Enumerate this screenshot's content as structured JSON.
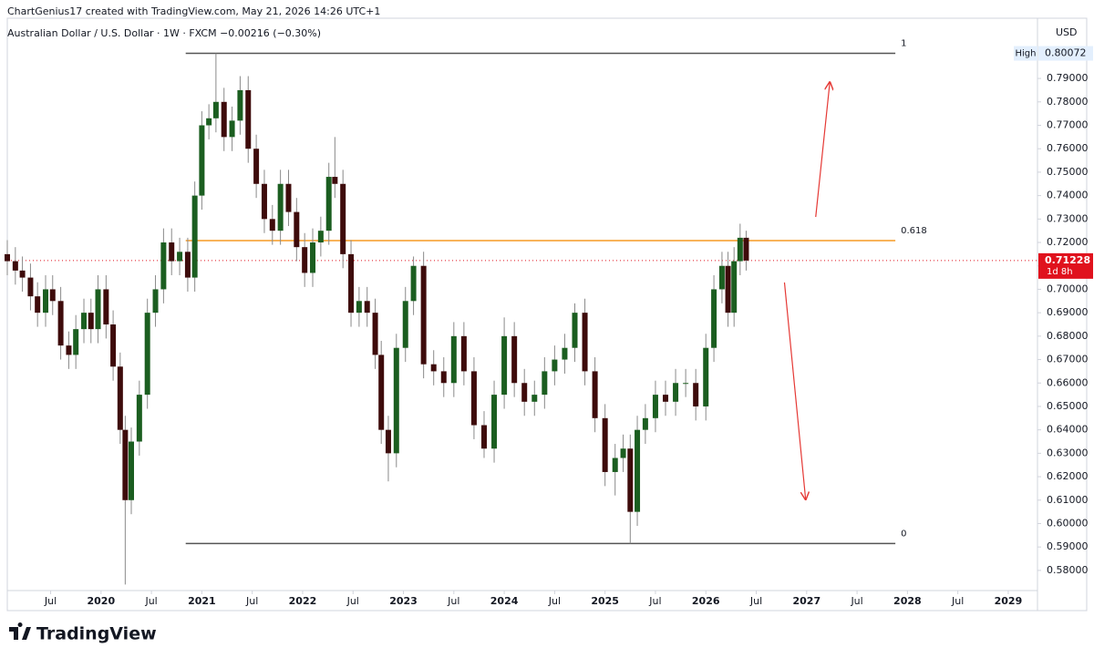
{
  "header": {
    "attribution": "ChartGenius17 created with TradingView.com, May 21, 2026 14:26 UTC+1",
    "symbol": "Australian Dollar / U.S. Dollar · 1W · FXCM",
    "change": "−0.00216 (−0.30%)"
  },
  "chart_data": {
    "type": "candlestick",
    "x": [
      2019.07,
      2019.15,
      2019.22,
      2019.3,
      2019.37,
      2019.45,
      2019.52,
      2019.6,
      2019.68,
      2019.75,
      2019.83,
      2019.9,
      2019.97,
      2020.05,
      2020.12,
      2020.19,
      2020.24,
      2020.3,
      2020.38,
      2020.46,
      2020.54,
      2020.62,
      2020.7,
      2020.78,
      2020.86,
      2020.93,
      2021.0,
      2021.07,
      2021.14,
      2021.22,
      2021.3,
      2021.38,
      2021.46,
      2021.54,
      2021.62,
      2021.7,
      2021.78,
      2021.86,
      2021.94,
      2022.02,
      2022.1,
      2022.18,
      2022.26,
      2022.32,
      2022.4,
      2022.48,
      2022.56,
      2022.64,
      2022.72,
      2022.78,
      2022.85,
      2022.93,
      2023.02,
      2023.1,
      2023.2,
      2023.3,
      2023.4,
      2023.5,
      2023.6,
      2023.7,
      2023.8,
      2023.9,
      2024.0,
      2024.1,
      2024.2,
      2024.3,
      2024.4,
      2024.5,
      2024.6,
      2024.7,
      2024.8,
      2024.9,
      2025.0,
      2025.1,
      2025.18,
      2025.25,
      2025.32,
      2025.4,
      2025.5,
      2025.6,
      2025.7,
      2025.8,
      2025.9,
      2026.0,
      2026.08,
      2026.16,
      2026.22,
      2026.28,
      2026.34,
      2026.4
    ],
    "open": [
      0.715,
      0.712,
      0.708,
      0.705,
      0.697,
      0.69,
      0.7,
      0.695,
      0.676,
      0.672,
      0.683,
      0.69,
      0.683,
      0.7,
      0.685,
      0.667,
      0.64,
      0.61,
      0.635,
      0.655,
      0.69,
      0.7,
      0.72,
      0.712,
      0.716,
      0.705,
      0.74,
      0.77,
      0.773,
      0.78,
      0.765,
      0.772,
      0.785,
      0.76,
      0.745,
      0.73,
      0.725,
      0.745,
      0.733,
      0.718,
      0.707,
      0.72,
      0.725,
      0.748,
      0.745,
      0.715,
      0.69,
      0.695,
      0.69,
      0.672,
      0.64,
      0.63,
      0.675,
      0.695,
      0.71,
      0.668,
      0.665,
      0.66,
      0.68,
      0.665,
      0.642,
      0.632,
      0.655,
      0.68,
      0.66,
      0.652,
      0.655,
      0.665,
      0.67,
      0.675,
      0.69,
      0.665,
      0.645,
      0.622,
      0.628,
      0.632,
      0.605,
      0.64,
      0.645,
      0.655,
      0.652,
      0.66,
      0.66,
      0.65,
      0.675,
      0.7,
      0.71,
      0.69,
      0.712,
      0.722
    ],
    "high": [
      0.721,
      0.718,
      0.714,
      0.711,
      0.703,
      0.706,
      0.706,
      0.701,
      0.682,
      0.689,
      0.696,
      0.696,
      0.706,
      0.706,
      0.691,
      0.673,
      0.646,
      0.641,
      0.661,
      0.696,
      0.706,
      0.726,
      0.726,
      0.722,
      0.722,
      0.746,
      0.776,
      0.779,
      0.80072,
      0.786,
      0.778,
      0.791,
      0.791,
      0.766,
      0.751,
      0.736,
      0.751,
      0.751,
      0.739,
      0.724,
      0.726,
      0.731,
      0.754,
      0.765,
      0.751,
      0.721,
      0.701,
      0.701,
      0.696,
      0.678,
      0.646,
      0.681,
      0.701,
      0.714,
      0.716,
      0.674,
      0.671,
      0.686,
      0.686,
      0.671,
      0.648,
      0.661,
      0.688,
      0.686,
      0.666,
      0.661,
      0.671,
      0.676,
      0.681,
      0.694,
      0.696,
      0.671,
      0.651,
      0.634,
      0.638,
      0.638,
      0.646,
      0.651,
      0.661,
      0.661,
      0.666,
      0.666,
      0.666,
      0.681,
      0.706,
      0.716,
      0.716,
      0.718,
      0.728,
      0.725
    ],
    "low": [
      0.706,
      0.702,
      0.699,
      0.691,
      0.684,
      0.684,
      0.689,
      0.67,
      0.666,
      0.666,
      0.677,
      0.677,
      0.677,
      0.679,
      0.661,
      0.634,
      0.574,
      0.604,
      0.629,
      0.649,
      0.684,
      0.694,
      0.706,
      0.706,
      0.699,
      0.699,
      0.734,
      0.764,
      0.767,
      0.759,
      0.759,
      0.766,
      0.754,
      0.739,
      0.724,
      0.719,
      0.719,
      0.727,
      0.712,
      0.701,
      0.701,
      0.714,
      0.719,
      0.739,
      0.709,
      0.684,
      0.684,
      0.684,
      0.666,
      0.634,
      0.618,
      0.624,
      0.669,
      0.689,
      0.662,
      0.659,
      0.654,
      0.654,
      0.659,
      0.636,
      0.628,
      0.626,
      0.649,
      0.654,
      0.646,
      0.646,
      0.649,
      0.659,
      0.664,
      0.669,
      0.659,
      0.639,
      0.616,
      0.612,
      0.622,
      0.5915,
      0.599,
      0.634,
      0.639,
      0.646,
      0.646,
      0.654,
      0.644,
      0.644,
      0.669,
      0.694,
      0.684,
      0.684,
      0.706,
      0.708
    ],
    "close": [
      0.712,
      0.708,
      0.705,
      0.697,
      0.69,
      0.7,
      0.695,
      0.676,
      0.672,
      0.683,
      0.69,
      0.683,
      0.7,
      0.685,
      0.667,
      0.64,
      0.61,
      0.635,
      0.655,
      0.69,
      0.7,
      0.72,
      0.712,
      0.716,
      0.705,
      0.74,
      0.77,
      0.773,
      0.78,
      0.765,
      0.772,
      0.785,
      0.76,
      0.745,
      0.73,
      0.725,
      0.745,
      0.733,
      0.718,
      0.707,
      0.72,
      0.725,
      0.748,
      0.745,
      0.715,
      0.69,
      0.695,
      0.69,
      0.672,
      0.64,
      0.63,
      0.675,
      0.695,
      0.71,
      0.668,
      0.665,
      0.66,
      0.68,
      0.665,
      0.642,
      0.632,
      0.655,
      0.68,
      0.66,
      0.652,
      0.655,
      0.665,
      0.67,
      0.675,
      0.69,
      0.665,
      0.645,
      0.622,
      0.628,
      0.632,
      0.605,
      0.64,
      0.645,
      0.655,
      0.652,
      0.66,
      0.66,
      0.65,
      0.675,
      0.7,
      0.71,
      0.69,
      0.712,
      0.722,
      0.71228
    ],
    "up_color": "#1b5e20",
    "down_color": "#3e0b0b",
    "wick_color": "#8a8a8a",
    "xlim": [
      2019.07,
      2029.29
    ],
    "xticks": [
      {
        "value": 2019.5,
        "label": "Jul"
      },
      2020,
      {
        "value": 2020.5,
        "label": "Jul"
      },
      2021,
      {
        "value": 2021.5,
        "label": "Jul"
      },
      2022,
      {
        "value": 2022.5,
        "label": "Jul"
      },
      2023,
      {
        "value": 2023.5,
        "label": "Jul"
      },
      2024,
      {
        "value": 2024.5,
        "label": "Jul"
      },
      2025,
      {
        "value": 2025.5,
        "label": "Jul"
      },
      2026,
      {
        "value": 2026.5,
        "label": "Jul"
      },
      2027,
      {
        "value": 2027.5,
        "label": "Jul"
      },
      2028,
      {
        "value": 2028.5,
        "label": "Jul"
      },
      2029
    ],
    "ylim": [
      0.5714,
      0.8126
    ],
    "yticks": [
      {
        "value": 0.58,
        "label": "0.58000"
      },
      {
        "value": 0.59,
        "label": "0.59000"
      },
      {
        "value": 0.6,
        "label": "0.60000"
      },
      {
        "value": 0.61,
        "label": "0.61000"
      },
      {
        "value": 0.62,
        "label": "0.62000"
      },
      {
        "value": 0.63,
        "label": "0.63000"
      },
      {
        "value": 0.64,
        "label": "0.64000"
      },
      {
        "value": 0.65,
        "label": "0.65000"
      },
      {
        "value": 0.66,
        "label": "0.66000"
      },
      {
        "value": 0.67,
        "label": "0.67000"
      },
      {
        "value": 0.68,
        "label": "0.68000"
      },
      {
        "value": 0.69,
        "label": "0.69000"
      },
      {
        "value": 0.7,
        "label": "0.70000"
      },
      {
        "value": 0.71,
        "label": "0.71000"
      },
      {
        "value": 0.72,
        "label": "0.72000"
      },
      {
        "value": 0.73,
        "label": "0.73000"
      },
      {
        "value": 0.74,
        "label": "0.74000"
      },
      {
        "value": 0.75,
        "label": "0.75000"
      },
      {
        "value": 0.76,
        "label": "0.76000"
      },
      {
        "value": 0.77,
        "label": "0.77000"
      },
      {
        "value": 0.78,
        "label": "0.78000"
      },
      {
        "value": 0.79,
        "label": "0.79000"
      }
    ],
    "currency": "USD",
    "high_marker": {
      "label": "High",
      "value": 0.80072
    },
    "last_price": {
      "value": 0.71228,
      "countdown": "1d 8h",
      "color": "#e0121d"
    },
    "fib": {
      "x": [
        2020.84,
        2027.88
      ],
      "levels": [
        {
          "ratio": 1,
          "value": 0.80072,
          "color": "#555555"
        },
        {
          "ratio": 0.618,
          "value": 0.7208,
          "color": "#f59a23"
        },
        {
          "ratio": 0,
          "value": 0.5915,
          "color": "#555555"
        }
      ]
    },
    "arrows": [
      {
        "x": [
          2027.09,
          2027.23
        ],
        "y": [
          0.7309,
          0.7884
        ],
        "color": "#e53935"
      },
      {
        "x": [
          2026.78,
          2026.99
        ],
        "y": [
          0.7029,
          0.6103
        ],
        "color": "#e53935"
      }
    ]
  },
  "footer": {
    "logo": "TradingView"
  }
}
